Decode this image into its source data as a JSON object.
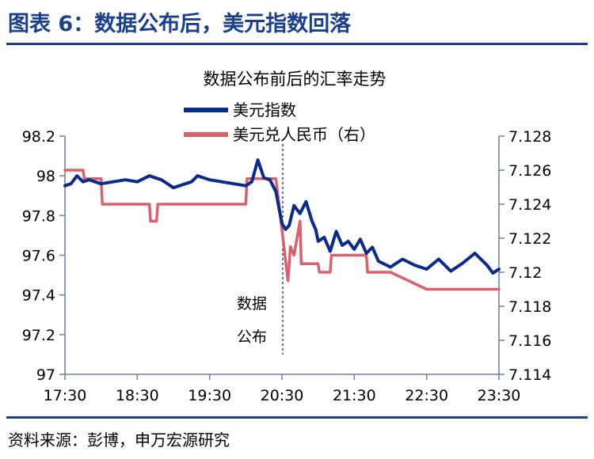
{
  "figure_title": "图表 6：数据公布后，美元指数回落",
  "source": "资料来源：彭博，申万宏源研究",
  "colors": {
    "accent": "#1a3f8c",
    "dxy": "#0a2a8c",
    "cnh": "#dc5f6a"
  },
  "chart_data": {
    "type": "line",
    "title": "数据公布前后的汇率走势",
    "x_ticks": [
      "17:30",
      "18:30",
      "19:30",
      "20:30",
      "21:30",
      "22:30",
      "23:30"
    ],
    "xlim": [
      "17:30",
      "23:30"
    ],
    "left_axis": {
      "ylim": [
        97,
        98.2
      ],
      "ticks": [
        "97",
        "97.2",
        "97.4",
        "97.6",
        "97.8",
        "98",
        "98.2"
      ]
    },
    "right_axis": {
      "ylim": [
        7.114,
        7.128
      ],
      "ticks": [
        "7.114",
        "7.116",
        "7.118",
        "7.12",
        "7.122",
        "7.124",
        "7.126",
        "7.128"
      ]
    },
    "legend_position": "top-center",
    "annotation": {
      "lines": [
        "数据",
        "公布"
      ],
      "x": "20:30"
    },
    "series": [
      {
        "name": "美元指数",
        "axis": "left",
        "x": [
          "17:30",
          "17:35",
          "17:40",
          "17:45",
          "17:50",
          "18:00",
          "18:10",
          "18:20",
          "18:30",
          "18:40",
          "18:50",
          "19:00",
          "19:05",
          "19:10",
          "19:15",
          "19:20",
          "19:30",
          "19:40",
          "19:50",
          "20:00",
          "20:05",
          "20:10",
          "20:15",
          "20:20",
          "20:25",
          "20:30",
          "20:33",
          "20:36",
          "20:40",
          "20:45",
          "20:50",
          "20:55",
          "20:58",
          "21:00",
          "21:05",
          "21:10",
          "21:15",
          "21:20",
          "21:25",
          "21:30",
          "21:35",
          "21:40",
          "21:45",
          "21:50",
          "22:00",
          "22:10",
          "22:20",
          "22:30",
          "22:40",
          "22:50",
          "23:00",
          "23:10",
          "23:15",
          "23:20",
          "23:25",
          "23:30"
        ],
        "y": [
          97.95,
          97.96,
          98.0,
          97.97,
          97.98,
          97.96,
          97.97,
          97.98,
          97.97,
          98.0,
          97.98,
          97.94,
          97.95,
          97.96,
          97.97,
          98.0,
          97.98,
          97.97,
          97.96,
          97.95,
          97.97,
          98.08,
          97.99,
          97.98,
          97.92,
          97.76,
          97.73,
          97.75,
          97.85,
          97.81,
          97.87,
          97.77,
          97.73,
          97.67,
          97.69,
          97.62,
          97.72,
          97.65,
          97.67,
          97.63,
          97.68,
          97.61,
          97.64,
          97.57,
          97.54,
          97.58,
          97.55,
          97.53,
          97.58,
          97.52,
          97.56,
          97.61,
          97.58,
          97.55,
          97.51,
          97.53
        ]
      },
      {
        "name": "美元兑人民币（右）",
        "axis": "right",
        "x": [
          "17:30",
          "17:45",
          "17:46",
          "18:00",
          "18:01",
          "18:40",
          "18:41",
          "18:46",
          "18:47",
          "19:30",
          "19:31",
          "20:00",
          "20:01",
          "20:25",
          "20:30",
          "20:35",
          "20:37",
          "20:40",
          "20:45",
          "20:46",
          "21:00",
          "21:01",
          "21:10",
          "21:11",
          "21:40",
          "21:41",
          "22:00",
          "22:30",
          "23:00",
          "23:30"
        ],
        "y": [
          7.126,
          7.126,
          7.1255,
          7.1255,
          7.124,
          7.124,
          7.123,
          7.123,
          7.124,
          7.124,
          7.124,
          7.124,
          7.1255,
          7.1255,
          7.1225,
          7.1195,
          7.1215,
          7.121,
          7.123,
          7.1205,
          7.1205,
          7.12,
          7.12,
          7.121,
          7.121,
          7.12,
          7.12,
          7.119,
          7.119,
          7.119
        ]
      }
    ]
  }
}
